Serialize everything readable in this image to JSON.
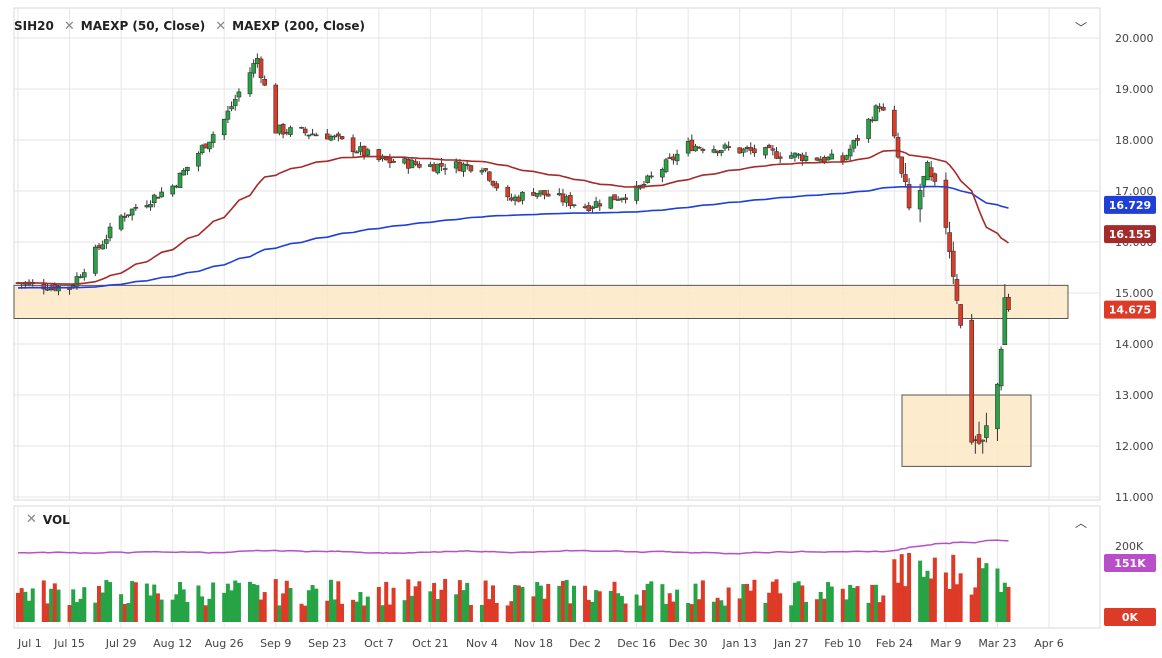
{
  "legend": {
    "symbol": "SIH20",
    "ma50_label": "MAEXP (50, Close)",
    "ma200_label": "MAEXP (200, Close)",
    "volume_label": "VOL"
  },
  "colors": {
    "up": "#26a344",
    "down": "#dd3b27",
    "ma50": "#a52a2a",
    "ma200": "#1f3fd6",
    "volume_ma": "#b84fc9",
    "zone_fill": "#fde8c4",
    "zone_border": "#555555",
    "grid": "#e6e6e6"
  },
  "chart_data": {
    "type": "candlestick",
    "symbol": "SIH20",
    "y_ticks": [
      "20.000",
      "19.000",
      "18.000",
      "17.000",
      "16.000",
      "15.000",
      "14.000",
      "13.000",
      "12.000",
      "11.000"
    ],
    "y_range": [
      11.0,
      20.0
    ],
    "x_tick_labels": [
      "Jul 1",
      "Jul 15",
      "Jul 29",
      "Aug 12",
      "Aug 26",
      "Sep 9",
      "Sep 23",
      "Oct 7",
      "Oct 21",
      "Nov 4",
      "Nov 18",
      "Dec 2",
      "Dec 16",
      "Dec 30",
      "Jan 13",
      "Jan 27",
      "Feb 10",
      "Feb 24",
      "Mar 9",
      "Mar 23",
      "Apr 6"
    ],
    "last_price": "14.675",
    "ma50_last": "16.155",
    "ma200_last": "16.729",
    "volume_ticks": [
      "200K",
      "0K"
    ],
    "volume_ma_last": "151K",
    "zones": [
      {
        "name": "resistance",
        "y_top": 15.15,
        "y_bottom": 14.5
      },
      {
        "name": "support",
        "y_top": 13.0,
        "y_bottom": 11.6
      }
    ],
    "ohlc_keypoints": [
      {
        "date": "Jul 1",
        "close": 15.2
      },
      {
        "date": "Jul 15",
        "close": 15.1
      },
      {
        "date": "Jul 29",
        "close": 16.5
      },
      {
        "date": "Aug 12",
        "close": 17.1
      },
      {
        "date": "Aug 26",
        "close": 18.4
      },
      {
        "date": "Sep 4",
        "close": 19.6
      },
      {
        "date": "Sep 9",
        "close": 18.2
      },
      {
        "date": "Sep 23",
        "close": 18.1
      },
      {
        "date": "Oct 7",
        "close": 17.6
      },
      {
        "date": "Oct 21",
        "close": 17.5
      },
      {
        "date": "Nov 4",
        "close": 17.5
      },
      {
        "date": "Nov 11",
        "close": 16.8
      },
      {
        "date": "Nov 18",
        "close": 17.0
      },
      {
        "date": "Dec 2",
        "close": 16.7
      },
      {
        "date": "Dec 16",
        "close": 17.0
      },
      {
        "date": "Dec 30",
        "close": 17.9
      },
      {
        "date": "Jan 13",
        "close": 17.8
      },
      {
        "date": "Jan 27",
        "close": 17.7
      },
      {
        "date": "Feb 10",
        "close": 17.6
      },
      {
        "date": "Feb 20",
        "close": 18.7
      },
      {
        "date": "Feb 24",
        "close": 18.0
      },
      {
        "date": "Feb 28",
        "close": 16.6
      },
      {
        "date": "Mar 4",
        "close": 17.3
      },
      {
        "date": "Mar 9",
        "close": 16.4
      },
      {
        "date": "Mar 12",
        "close": 15.0
      },
      {
        "date": "Mar 16",
        "close": 12.2
      },
      {
        "date": "Mar 19",
        "close": 12.0
      },
      {
        "date": "Mar 23",
        "close": 13.2
      },
      {
        "date": "Mar 25",
        "close": 14.9
      },
      {
        "date": "Mar 26",
        "close": 14.675
      }
    ]
  }
}
